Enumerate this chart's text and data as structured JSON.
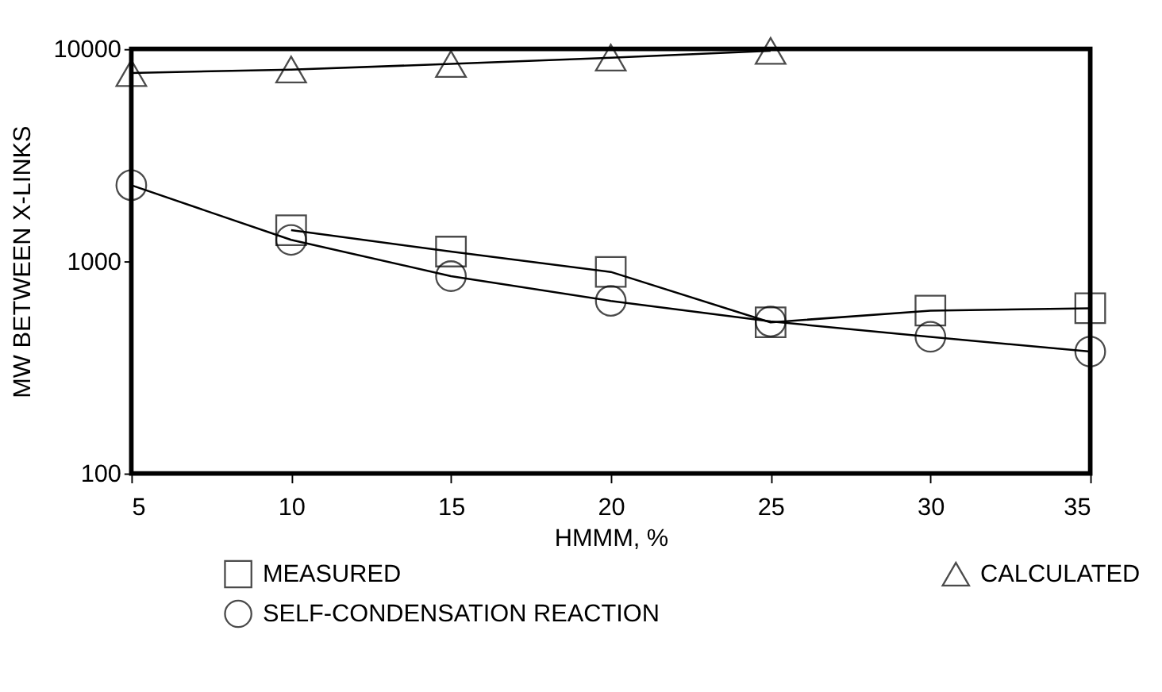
{
  "chart_data": {
    "type": "line",
    "xlabel": "HMMM, %",
    "ylabel": "MW BETWEEN X-LINKS",
    "x": [
      5,
      10,
      15,
      20,
      25,
      30,
      35
    ],
    "series": [
      {
        "name": "MEASURED",
        "color": "#000000",
        "marker": "square",
        "values": [
          null,
          1400,
          1110,
          890,
          515,
          585,
          600
        ]
      },
      {
        "name": "CALCULATED",
        "color": "#000000",
        "marker": "triangle",
        "values": [
          7700,
          8000,
          8500,
          9100,
          9800,
          null,
          null
        ]
      },
      {
        "name": "SELF-CONDENSATION REACTION",
        "color": "#000000",
        "marker": "circle",
        "values": [
          2280,
          1260,
          850,
          650,
          520,
          440,
          375
        ]
      }
    ],
    "xlim": [
      5,
      35
    ],
    "xticks": [
      5,
      10,
      15,
      20,
      25,
      30,
      35
    ],
    "ylim": [
      100,
      10000
    ],
    "yticks": [
      100,
      1000,
      10000
    ],
    "log": "y",
    "grid": false,
    "legend": "bottom",
    "line_style": "solid"
  }
}
